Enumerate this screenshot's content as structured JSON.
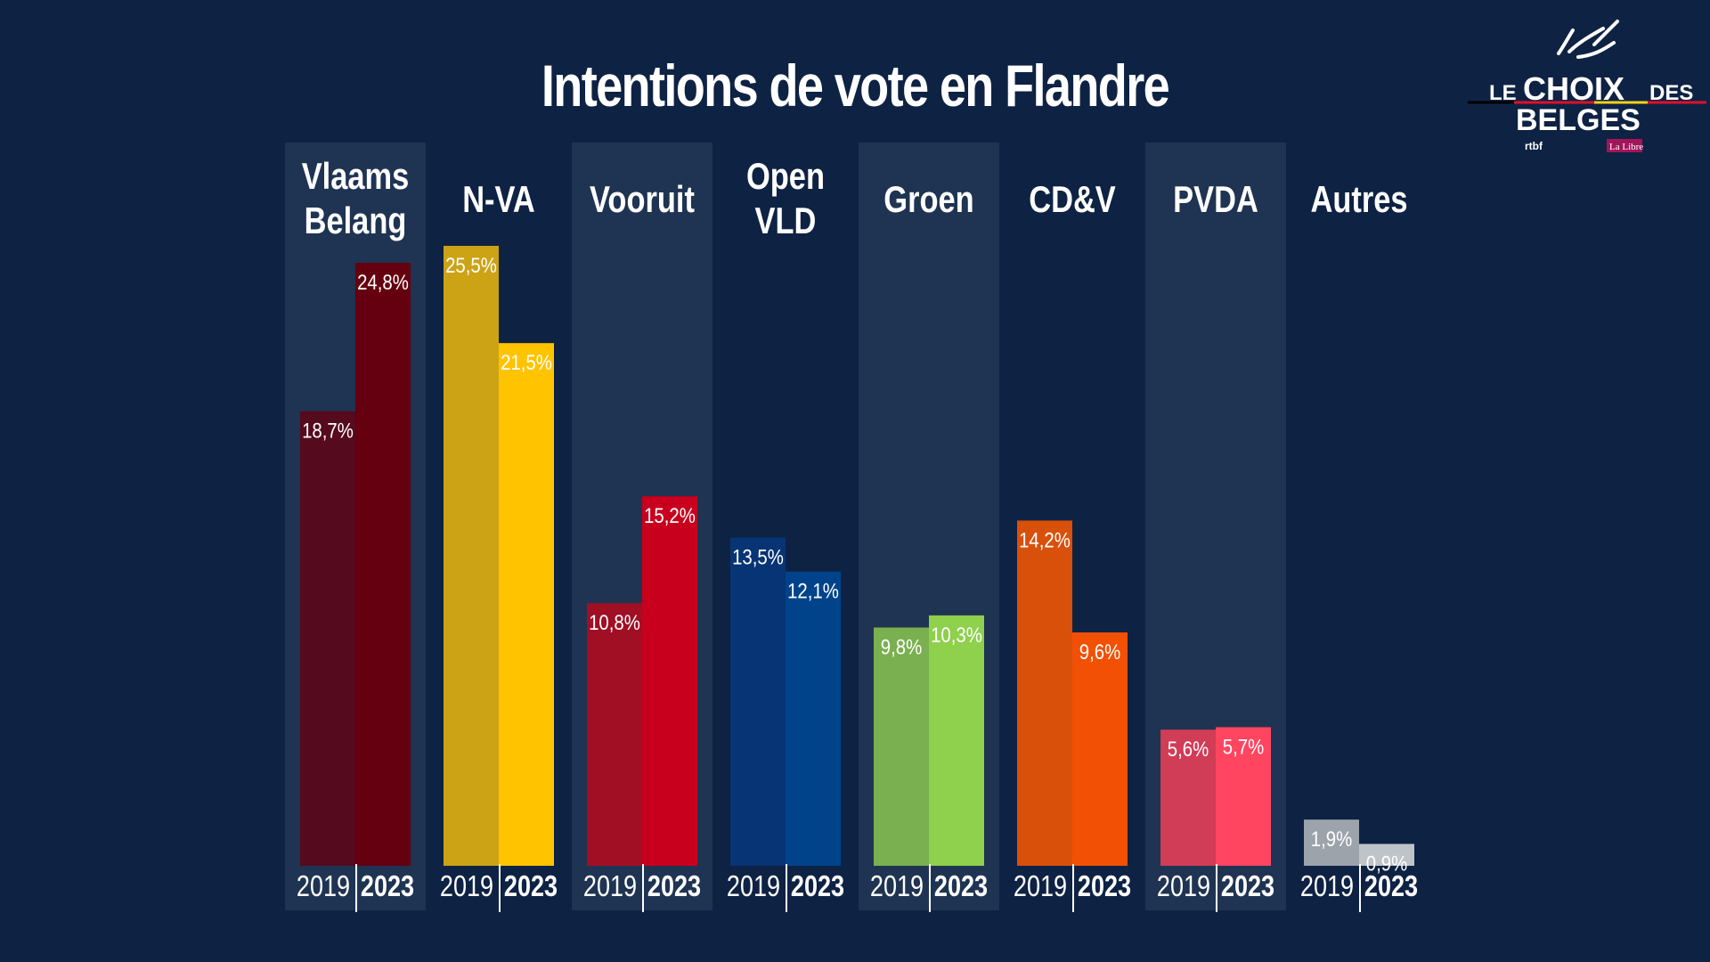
{
  "title": "Intentions de vote en Flandre",
  "logo": {
    "line1_left": "LE",
    "line1_main": "CHOIX",
    "line1_right": "DES",
    "line2": "BELGES",
    "partner1": "rtbf",
    "partner2": "La Libre"
  },
  "colors": {
    "background": "#0e2244",
    "column_shade": "#1f3452",
    "text": "#ffffff"
  },
  "chart_data": {
    "type": "bar",
    "title": "Intentions de vote en Flandre",
    "xlabel": "",
    "ylabel": "",
    "ylim": [
      0,
      25.5
    ],
    "years": [
      "2019",
      "2023"
    ],
    "value_format": "comma-percent",
    "grid": false,
    "categories": [
      {
        "name": "Vlaams\nBelang",
        "values": [
          18.7,
          24.8
        ],
        "labels": [
          "18,7%",
          "24,8%"
        ],
        "colors": [
          "#560a1d",
          "#64000f"
        ],
        "shaded": true
      },
      {
        "name": "N-VA",
        "values": [
          25.5,
          21.5
        ],
        "labels": [
          "25,5%",
          "21,5%"
        ],
        "colors": [
          "#cca315",
          "#ffc300"
        ],
        "shaded": false
      },
      {
        "name": "Vooruit",
        "values": [
          10.8,
          15.2
        ],
        "labels": [
          "10,8%",
          "15,2%"
        ],
        "colors": [
          "#a00f24",
          "#c8001e"
        ],
        "shaded": true
      },
      {
        "name": "Open\nVLD",
        "values": [
          13.5,
          12.1
        ],
        "labels": [
          "13,5%",
          "12,1%"
        ],
        "colors": [
          "#073474",
          "#00438b"
        ],
        "shaded": false
      },
      {
        "name": "Groen",
        "values": [
          9.8,
          10.3
        ],
        "labels": [
          "9,8%",
          "10,3%"
        ],
        "colors": [
          "#7ab050",
          "#8fd04c"
        ],
        "shaded": true
      },
      {
        "name": "CD&V",
        "values": [
          14.2,
          9.6
        ],
        "labels": [
          "14,2%",
          "9,6%"
        ],
        "colors": [
          "#d9500b",
          "#f25004"
        ],
        "shaded": false
      },
      {
        "name": "PVDA",
        "values": [
          5.6,
          5.7
        ],
        "labels": [
          "5,6%",
          "5,7%"
        ],
        "colors": [
          "#d13c56",
          "#ff4560"
        ],
        "shaded": true
      },
      {
        "name": "Autres",
        "values": [
          1.9,
          0.9
        ],
        "labels": [
          "1,9%",
          "0,9%"
        ],
        "colors": [
          "#9ca3ab",
          "#bfc4c9"
        ],
        "shaded": false
      }
    ]
  }
}
